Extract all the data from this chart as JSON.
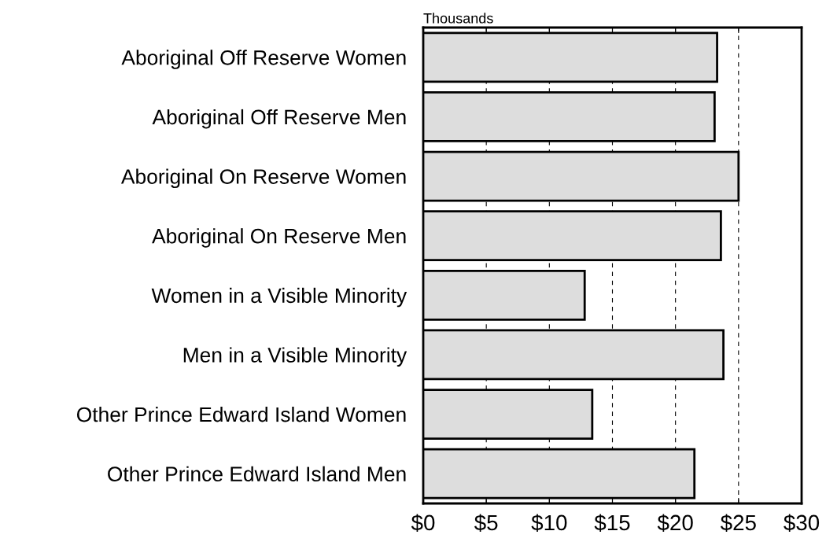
{
  "chart_data": {
    "type": "bar",
    "orientation": "horizontal",
    "categories": [
      "Aboriginal Off Reserve Women",
      "Aboriginal Off Reserve Men",
      "Aboriginal On Reserve Women",
      "Aboriginal On Reserve Men",
      "Women in a Visible Minority",
      "Men in a Visible Minority",
      "Other Prince Edward Island Women",
      "Other Prince Edward Island Men"
    ],
    "values": [
      23.3,
      23.1,
      25.0,
      23.6,
      12.8,
      23.8,
      13.4,
      21.5
    ],
    "color": "#dddddd",
    "xlim": [
      0,
      30
    ],
    "xticks": [
      {
        "value": 0,
        "label": "$0"
      },
      {
        "value": 5,
        "label": "$5"
      },
      {
        "value": 10,
        "label": "$10"
      },
      {
        "value": 15,
        "label": "$15"
      },
      {
        "value": 20,
        "label": "$20"
      },
      {
        "value": 25,
        "label": "$25"
      },
      {
        "value": 30,
        "label": "$30"
      }
    ],
    "annotations": [
      "Thousands"
    ],
    "grid": "x",
    "line_style": "dashed"
  }
}
